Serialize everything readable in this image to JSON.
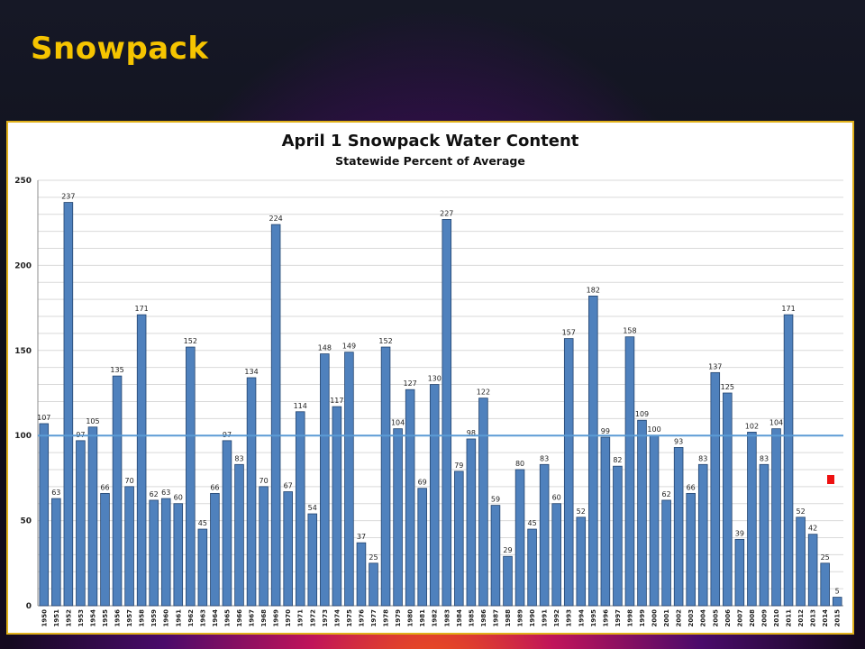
{
  "slide": {
    "title": "Snowpack"
  },
  "colors": {
    "bar": "#4f81bd",
    "bar_stroke": "#23446e",
    "reference_line": "#5b9bd5",
    "title": "#f5c400",
    "highlight": "#ee1111"
  },
  "chart_data": {
    "type": "bar",
    "title": "April 1 Snowpack Water Content",
    "subtitle": "Statewide Percent of Average",
    "xlabel": "",
    "ylabel": "",
    "ylim": [
      0,
      250
    ],
    "yticks": [
      0,
      50,
      100,
      150,
      200,
      250
    ],
    "reference_line": 100,
    "grid": true,
    "categories": [
      "1950",
      "1951",
      "1952",
      "1953",
      "1954",
      "1955",
      "1956",
      "1957",
      "1958",
      "1959",
      "1960",
      "1961",
      "1962",
      "1963",
      "1964",
      "1965",
      "1966",
      "1967",
      "1968",
      "1969",
      "1970",
      "1971",
      "1972",
      "1973",
      "1974",
      "1975",
      "1976",
      "1977",
      "1978",
      "1979",
      "1980",
      "1981",
      "1982",
      "1983",
      "1984",
      "1985",
      "1986",
      "1987",
      "1988",
      "1989",
      "1990",
      "1991",
      "1992",
      "1993",
      "1994",
      "1995",
      "1996",
      "1997",
      "1998",
      "1999",
      "2000",
      "2001",
      "2002",
      "2003",
      "2004",
      "2005",
      "2006",
      "2007",
      "2008",
      "2009",
      "2010",
      "2011",
      "2012",
      "2013",
      "2014",
      "2015"
    ],
    "values": [
      107,
      63,
      237,
      97,
      105,
      66,
      135,
      70,
      171,
      62,
      63,
      60,
      152,
      45,
      66,
      97,
      83,
      134,
      70,
      224,
      67,
      114,
      54,
      148,
      117,
      149,
      37,
      25,
      152,
      104,
      127,
      69,
      130,
      227,
      79,
      98,
      122,
      59,
      29,
      80,
      45,
      83,
      60,
      157,
      52,
      182,
      99,
      82,
      158,
      109,
      100,
      62,
      93,
      66,
      83,
      137,
      125,
      39,
      102,
      83,
      104,
      171,
      52,
      42,
      25,
      5
    ]
  }
}
